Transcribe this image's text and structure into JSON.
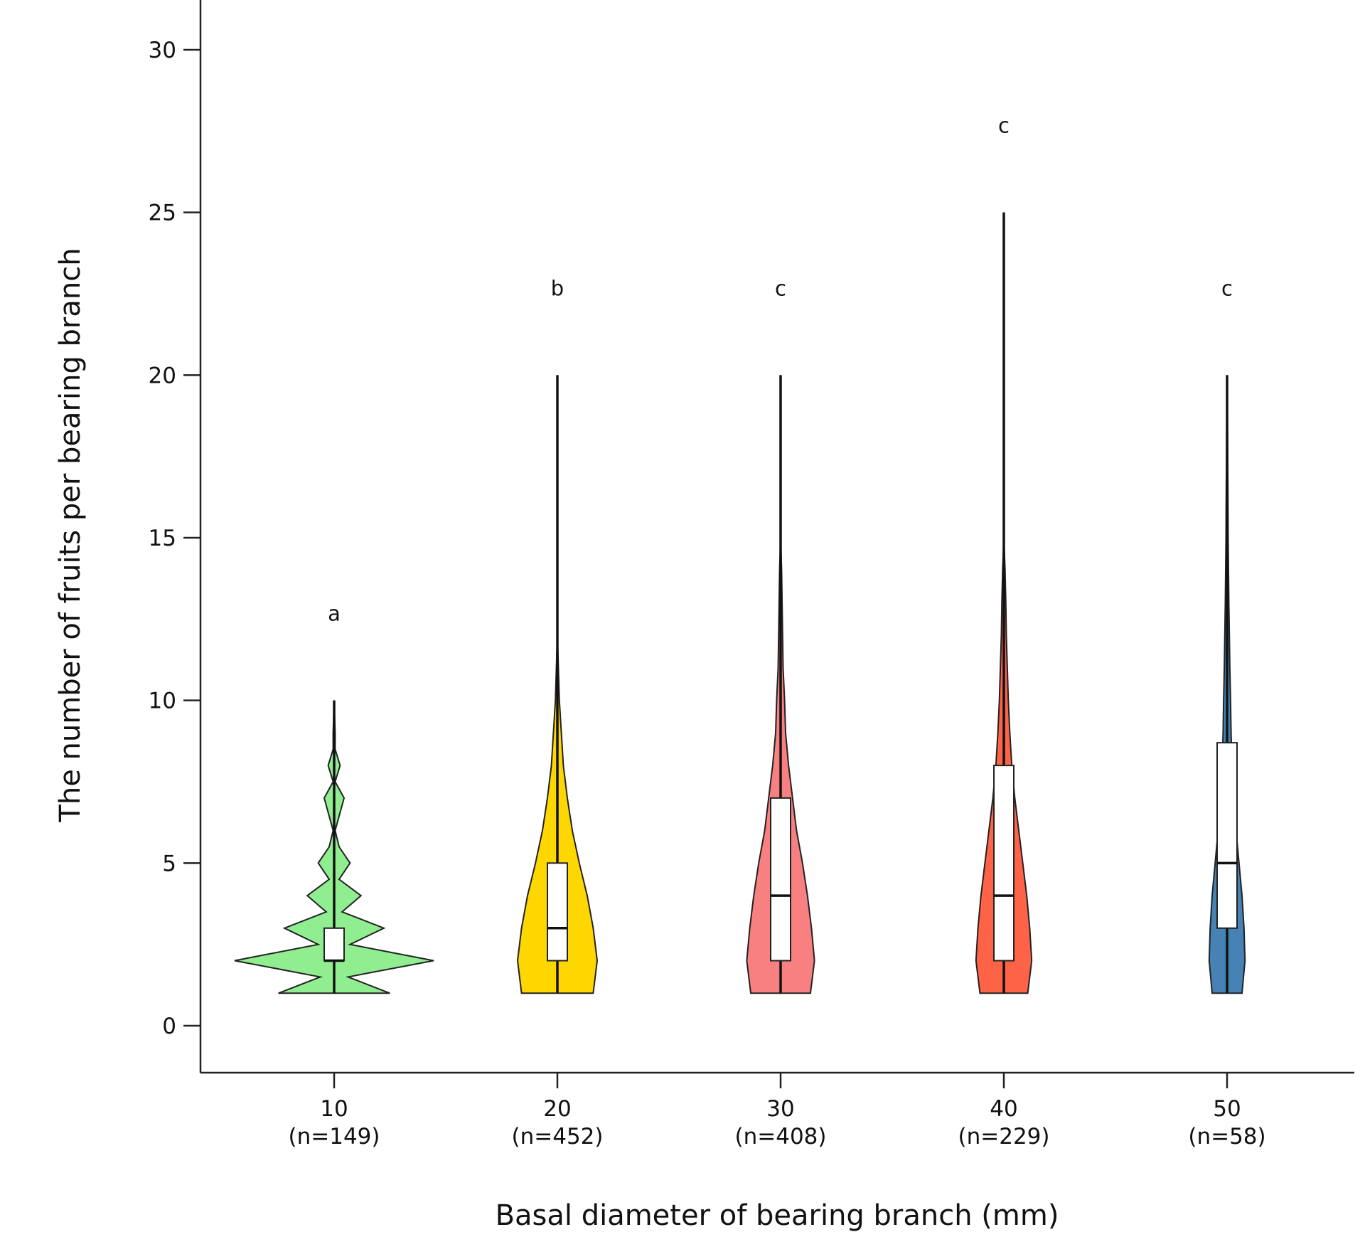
{
  "chart_data": {
    "type": "violin",
    "title": "",
    "xlabel": "Basal diameter of bearing branch (mm)",
    "ylabel": "The number of fruits per bearing branch",
    "ylim": [
      -1.5,
      31.5
    ],
    "yticks": [
      0,
      5,
      10,
      15,
      20,
      25,
      30
    ],
    "grid": false,
    "legend": "none",
    "groups": [
      {
        "category": "10",
        "n_label": "(n=149)",
        "letter": "a",
        "color": "#90EE90",
        "min": 1,
        "q1": 2,
        "median": 2,
        "q3": 3,
        "max": 10,
        "density": [
          [
            1,
            0.56
          ],
          [
            1.5,
            0.14
          ],
          [
            2,
            1.0
          ],
          [
            2.5,
            0.16
          ],
          [
            3,
            0.5
          ],
          [
            3.5,
            0.08
          ],
          [
            4,
            0.27
          ],
          [
            4.5,
            0.05
          ],
          [
            5,
            0.16
          ],
          [
            5.5,
            0.05
          ],
          [
            6,
            0.01
          ],
          [
            7,
            0.1
          ],
          [
            7.5,
            0.01
          ],
          [
            8,
            0.06
          ],
          [
            8.5,
            0.01
          ],
          [
            9,
            0.01
          ],
          [
            10,
            0.0
          ]
        ]
      },
      {
        "category": "20",
        "n_label": "(n=452)",
        "letter": "b",
        "color": "#FFD700",
        "min": 1,
        "q1": 2,
        "median": 3,
        "q3": 5,
        "max": 20,
        "density": [
          [
            1,
            0.36
          ],
          [
            2,
            0.4
          ],
          [
            3,
            0.36
          ],
          [
            4,
            0.3
          ],
          [
            5,
            0.22
          ],
          [
            6,
            0.15
          ],
          [
            7,
            0.1
          ],
          [
            8,
            0.06
          ],
          [
            9,
            0.04
          ],
          [
            10,
            0.02
          ],
          [
            11,
            0.01
          ],
          [
            12,
            0.0
          ]
        ]
      },
      {
        "category": "30",
        "n_label": "(n=408)",
        "letter": "c",
        "color": "#F88080",
        "min": 1,
        "q1": 2,
        "median": 4,
        "q3": 7,
        "max": 20,
        "density": [
          [
            1,
            0.3
          ],
          [
            2,
            0.34
          ],
          [
            3,
            0.31
          ],
          [
            4,
            0.27
          ],
          [
            5,
            0.22
          ],
          [
            6,
            0.16
          ],
          [
            7,
            0.12
          ],
          [
            8,
            0.08
          ],
          [
            9,
            0.05
          ],
          [
            10,
            0.04
          ],
          [
            11,
            0.025
          ],
          [
            12,
            0.02
          ],
          [
            13,
            0.015
          ],
          [
            14,
            0.01
          ],
          [
            15,
            0.0
          ]
        ]
      },
      {
        "category": "40",
        "n_label": "(n=229)",
        "letter": "c",
        "color": "#FF6347",
        "min": 1,
        "q1": 2,
        "median": 4,
        "q3": 8,
        "max": 25,
        "density": [
          [
            1,
            0.24
          ],
          [
            2,
            0.28
          ],
          [
            3,
            0.26
          ],
          [
            4,
            0.23
          ],
          [
            5,
            0.19
          ],
          [
            6,
            0.15
          ],
          [
            7,
            0.11
          ],
          [
            8,
            0.08
          ],
          [
            9,
            0.06
          ],
          [
            10,
            0.045
          ],
          [
            11,
            0.035
          ],
          [
            12,
            0.025
          ],
          [
            13,
            0.02
          ],
          [
            14,
            0.012
          ],
          [
            15,
            0.0
          ]
        ]
      },
      {
        "category": "50",
        "n_label": "(n=58)",
        "letter": "c",
        "color": "#4682B4",
        "min": 1,
        "q1": 3,
        "median": 5,
        "q3": 8.7,
        "max": 20,
        "density": [
          [
            1,
            0.15
          ],
          [
            2,
            0.18
          ],
          [
            3,
            0.17
          ],
          [
            4,
            0.15
          ],
          [
            5,
            0.12
          ],
          [
            6,
            0.09
          ],
          [
            7,
            0.07
          ],
          [
            8,
            0.05
          ],
          [
            9,
            0.04
          ],
          [
            10,
            0.035
          ],
          [
            11,
            0.028
          ],
          [
            12,
            0.023
          ],
          [
            13,
            0.018
          ],
          [
            14,
            0.014
          ],
          [
            15,
            0.011
          ],
          [
            16,
            0.009
          ],
          [
            17,
            0.007
          ],
          [
            18,
            0.005
          ],
          [
            19,
            0.003
          ],
          [
            20,
            0.0
          ]
        ]
      }
    ]
  }
}
